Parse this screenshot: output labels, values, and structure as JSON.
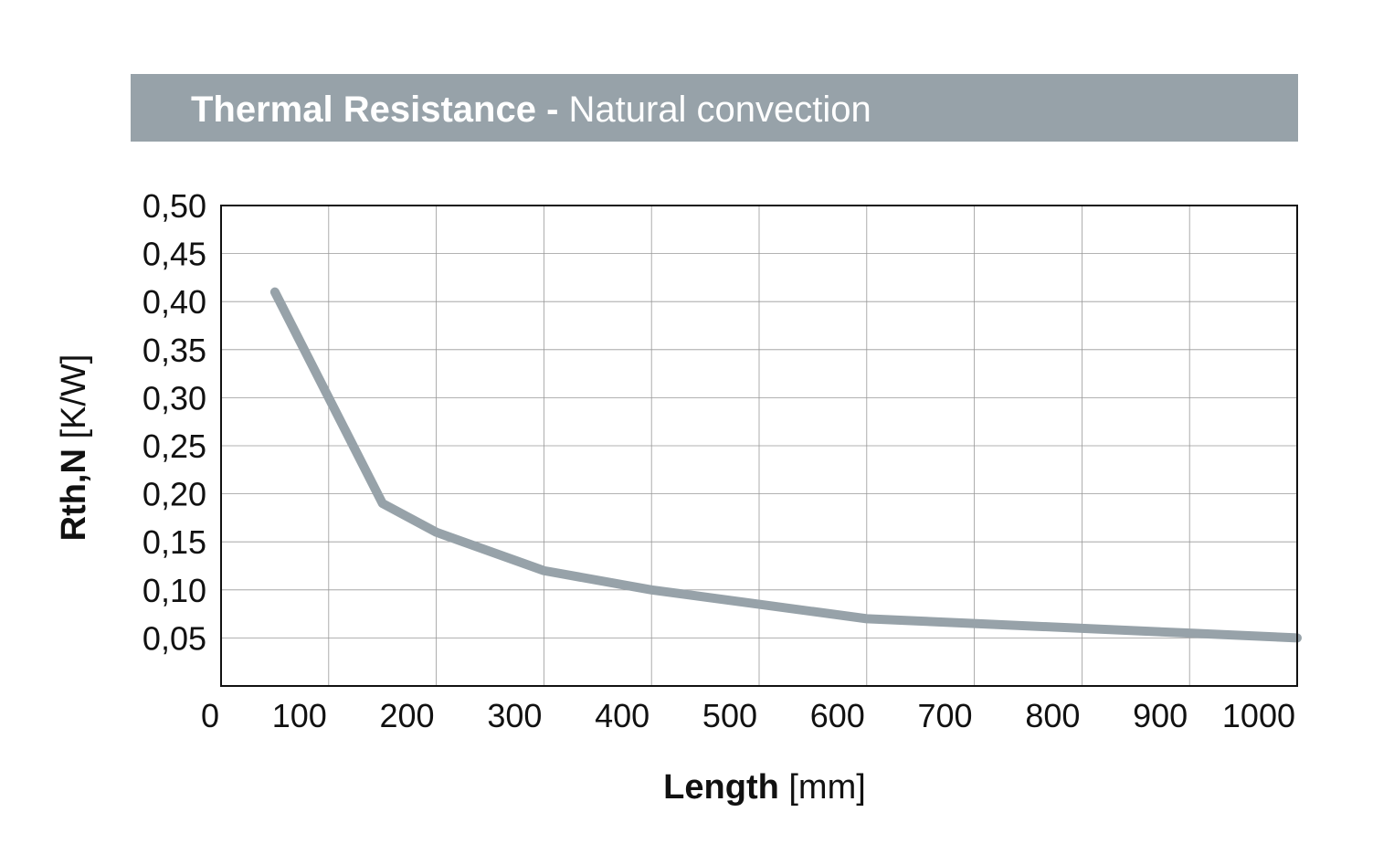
{
  "chart_data": {
    "type": "line",
    "title": "Thermal Resistance",
    "title_separator": " - ",
    "subtitle": "Natural convection",
    "xlabel": "Length",
    "xlabel_unit": "[mm]",
    "ylabel": "Rth,N",
    "ylabel_unit": "[K/W]",
    "xlim": [
      0,
      1000
    ],
    "ylim": [
      0,
      0.5
    ],
    "x_ticks": [
      0,
      100,
      200,
      300,
      400,
      500,
      600,
      700,
      800,
      900,
      1000
    ],
    "x_tick_labels": [
      "0",
      "100",
      "200",
      "300",
      "400",
      "500",
      "600",
      "700",
      "800",
      "900",
      "1000"
    ],
    "y_ticks": [
      0.05,
      0.1,
      0.15,
      0.2,
      0.25,
      0.3,
      0.35,
      0.4,
      0.45,
      0.5
    ],
    "y_tick_labels": [
      "0,05",
      "0,10",
      "0,15",
      "0,20",
      "0,25",
      "0,30",
      "0,35",
      "0,40",
      "0,45",
      "0,50"
    ],
    "grid": true,
    "legend": "none",
    "series": [
      {
        "name": "Rth,N",
        "color": "#97a2a9",
        "x": [
          50,
          150,
          200,
          300,
          400,
          500,
          600,
          700,
          800,
          900,
          1000
        ],
        "y": [
          0.41,
          0.19,
          0.16,
          0.12,
          0.1,
          0.085,
          0.07,
          0.065,
          0.06,
          0.055,
          0.05
        ]
      }
    ],
    "colors": {
      "banner": "#97a2a9",
      "grid": "#999999",
      "axis": "#111111"
    }
  }
}
